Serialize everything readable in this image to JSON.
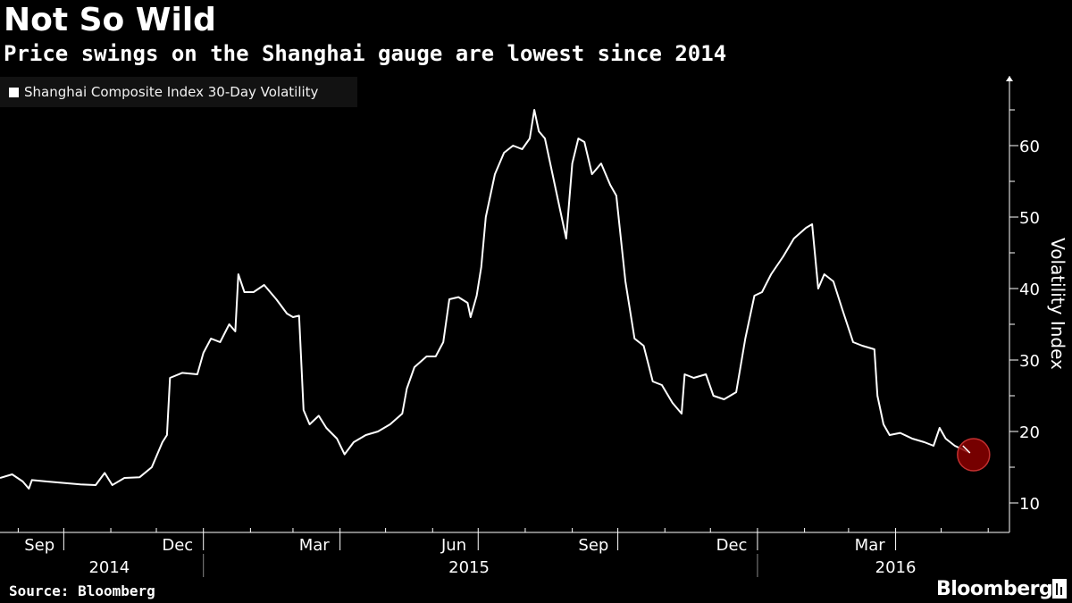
{
  "header": {
    "title": "Not So Wild",
    "subtitle": "Price swings on the Shanghai gauge are lowest since 2014"
  },
  "footer": {
    "source": "Source: Bloomberg",
    "brand": "Bloomberg"
  },
  "colors": {
    "background": "#000000",
    "line": "#ffffff",
    "highlight": "#8b0000"
  },
  "chart_data": {
    "type": "line",
    "title": "Not So Wild",
    "subtitle": "Price swings on the Shanghai gauge are lowest since 2014",
    "ylabel": "Volatility Index",
    "xlabel": "",
    "ylim": [
      5,
      65
    ],
    "yticks": [
      10,
      20,
      30,
      40,
      50,
      60
    ],
    "grid": false,
    "legend": "top-left",
    "x_range": [
      "2014-08-20",
      "2016-06-15"
    ],
    "month_ticks": [
      "Sep",
      "Dec",
      "Mar",
      "Jun",
      "Sep",
      "Dec",
      "Mar"
    ],
    "month_tick_dates": [
      "2014-09-15",
      "2014-12-15",
      "2015-03-15",
      "2015-06-15",
      "2015-09-15",
      "2015-12-15",
      "2016-03-15"
    ],
    "year_labels": [
      "2014",
      "2015",
      "2016"
    ],
    "year_label_dates": [
      "2014-10-31",
      "2015-06-25",
      "2016-04-01"
    ],
    "series": [
      {
        "name": "Shanghai Composite Index 30-Day Volatility",
        "points": [
          [
            "2014-08-20",
            13.5
          ],
          [
            "2014-08-28",
            14.0
          ],
          [
            "2014-09-04",
            13.0
          ],
          [
            "2014-09-08",
            12.0
          ],
          [
            "2014-09-10",
            13.2
          ],
          [
            "2014-09-20",
            13.0
          ],
          [
            "2014-10-01",
            12.8
          ],
          [
            "2014-10-12",
            12.6
          ],
          [
            "2014-10-22",
            12.5
          ],
          [
            "2014-10-28",
            14.2
          ],
          [
            "2014-11-02",
            12.5
          ],
          [
            "2014-11-10",
            13.5
          ],
          [
            "2014-11-20",
            13.6
          ],
          [
            "2014-11-28",
            15.0
          ],
          [
            "2014-12-05",
            18.5
          ],
          [
            "2014-12-08",
            19.5
          ],
          [
            "2014-12-10",
            27.5
          ],
          [
            "2014-12-18",
            28.2
          ],
          [
            "2014-12-28",
            28.0
          ],
          [
            "2015-01-01",
            31.0
          ],
          [
            "2015-01-06",
            33.0
          ],
          [
            "2015-01-12",
            32.5
          ],
          [
            "2015-01-18",
            35.0
          ],
          [
            "2015-01-22",
            34.0
          ],
          [
            "2015-01-24",
            42.0
          ],
          [
            "2015-01-28",
            39.5
          ],
          [
            "2015-02-03",
            39.5
          ],
          [
            "2015-02-10",
            40.5
          ],
          [
            "2015-02-18",
            38.5
          ],
          [
            "2015-02-25",
            36.5
          ],
          [
            "2015-03-01",
            36.0
          ],
          [
            "2015-03-05",
            36.2
          ],
          [
            "2015-03-08",
            23.0
          ],
          [
            "2015-03-12",
            21.0
          ],
          [
            "2015-03-18",
            22.2
          ],
          [
            "2015-03-23",
            20.5
          ],
          [
            "2015-03-30",
            19.0
          ],
          [
            "2015-04-04",
            16.8
          ],
          [
            "2015-04-10",
            18.5
          ],
          [
            "2015-04-18",
            19.5
          ],
          [
            "2015-04-26",
            20.0
          ],
          [
            "2015-05-04",
            21.0
          ],
          [
            "2015-05-12",
            22.5
          ],
          [
            "2015-05-15",
            26.0
          ],
          [
            "2015-05-20",
            29.0
          ],
          [
            "2015-05-28",
            30.5
          ],
          [
            "2015-06-03",
            30.5
          ],
          [
            "2015-06-08",
            32.5
          ],
          [
            "2015-06-12",
            38.5
          ],
          [
            "2015-06-18",
            38.8
          ],
          [
            "2015-06-24",
            38.0
          ],
          [
            "2015-06-26",
            36.0
          ],
          [
            "2015-06-30",
            39.0
          ],
          [
            "2015-07-03",
            43.0
          ],
          [
            "2015-07-06",
            50.0
          ],
          [
            "2015-07-12",
            56.0
          ],
          [
            "2015-07-18",
            59.0
          ],
          [
            "2015-07-24",
            60.0
          ],
          [
            "2015-07-30",
            59.5
          ],
          [
            "2015-08-04",
            61.0
          ],
          [
            "2015-08-07",
            65.0
          ],
          [
            "2015-08-10",
            62.0
          ],
          [
            "2015-08-14",
            61.0
          ],
          [
            "2015-08-18",
            57.0
          ],
          [
            "2015-08-24",
            51.0
          ],
          [
            "2015-08-28",
            47.0
          ],
          [
            "2015-09-01",
            57.5
          ],
          [
            "2015-09-05",
            61.0
          ],
          [
            "2015-09-09",
            60.5
          ],
          [
            "2015-09-14",
            56.0
          ],
          [
            "2015-09-20",
            57.5
          ],
          [
            "2015-09-26",
            54.5
          ],
          [
            "2015-09-30",
            53.0
          ],
          [
            "2015-10-06",
            41.0
          ],
          [
            "2015-10-12",
            33.0
          ],
          [
            "2015-10-18",
            32.0
          ],
          [
            "2015-10-24",
            27.0
          ],
          [
            "2015-10-30",
            26.5
          ],
          [
            "2015-11-06",
            24.0
          ],
          [
            "2015-11-12",
            22.5
          ],
          [
            "2015-11-14",
            28.0
          ],
          [
            "2015-11-20",
            27.5
          ],
          [
            "2015-11-28",
            28.0
          ],
          [
            "2015-12-03",
            25.0
          ],
          [
            "2015-12-10",
            24.5
          ],
          [
            "2015-12-18",
            25.5
          ],
          [
            "2015-12-24",
            33.0
          ],
          [
            "2015-12-30",
            39.0
          ],
          [
            "2016-01-04",
            39.5
          ],
          [
            "2016-01-10",
            42.0
          ],
          [
            "2016-01-18",
            44.5
          ],
          [
            "2016-01-25",
            47.0
          ],
          [
            "2016-02-02",
            48.5
          ],
          [
            "2016-02-06",
            49.0
          ],
          [
            "2016-02-10",
            40.0
          ],
          [
            "2016-02-14",
            42.0
          ],
          [
            "2016-02-20",
            41.0
          ],
          [
            "2016-02-26",
            37.0
          ],
          [
            "2016-03-04",
            32.5
          ],
          [
            "2016-03-10",
            32.0
          ],
          [
            "2016-03-18",
            31.5
          ],
          [
            "2016-03-20",
            25.0
          ],
          [
            "2016-03-24",
            21.0
          ],
          [
            "2016-03-28",
            19.5
          ],
          [
            "2016-04-04",
            19.8
          ],
          [
            "2016-04-12",
            19.0
          ],
          [
            "2016-04-20",
            18.5
          ],
          [
            "2016-04-26",
            18.0
          ],
          [
            "2016-04-30",
            20.5
          ],
          [
            "2016-05-04",
            19.0
          ],
          [
            "2016-05-10",
            18.0
          ],
          [
            "2016-05-20",
            17.0
          ]
        ]
      }
    ],
    "highlight_point": [
      "2016-05-20",
      17.0
    ]
  }
}
